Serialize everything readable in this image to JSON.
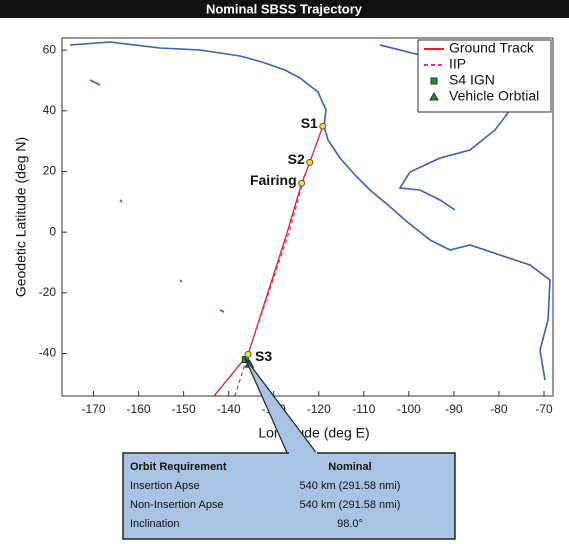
{
  "chart_data": {
    "type": "line",
    "title": "Nominal SBSS Trajectory",
    "xlabel": "Longitude (deg E)",
    "ylabel": "Geodetic Latitude (deg N)",
    "xlim": [
      -177,
      -68
    ],
    "ylim": [
      -54,
      64
    ],
    "xticks": [
      -170,
      -160,
      -150,
      -140,
      -130,
      -120,
      -110,
      -100,
      -90,
      -80,
      -70
    ],
    "yticks": [
      -40,
      -20,
      0,
      20,
      40,
      60
    ],
    "legend": "upper right",
    "series": [
      {
        "name": "Ground Track",
        "color": "#d9262b",
        "style": "solid",
        "x": [
          -119.1,
          -122.0,
          -123.8,
          -127.0,
          -135.7,
          -143.2
        ],
        "y": [
          34.9,
          23.0,
          16.1,
          0,
          -40.3,
          -53.9
        ]
      },
      {
        "name": "IIP",
        "color": "#d23a8a",
        "style": "dashed",
        "x": [
          -119.1,
          -122.0,
          -123.6,
          -126.6,
          -135.7,
          -138.6
        ],
        "y": [
          34.9,
          23.0,
          16.1,
          0,
          -40.3,
          -53.9
        ]
      },
      {
        "name": "S4 IGN",
        "color": "#2e8b3a",
        "style": "square",
        "x": [
          -136.3
        ],
        "y": [
          -42.0
        ]
      },
      {
        "name": "Vehicle Orbtial",
        "color": "#2e8b3a",
        "style": "triangle",
        "x": [
          -135.4
        ],
        "y": [
          -43.5
        ]
      }
    ],
    "annotations": [
      {
        "text": "S1",
        "x": -119.1,
        "y": 34.9
      },
      {
        "text": "S2",
        "x": -122.0,
        "y": 23.0
      },
      {
        "text": "Fairing",
        "x": -123.8,
        "y": 16.1
      },
      {
        "text": "S3",
        "x": -135.7,
        "y": -40.3
      }
    ]
  },
  "table": {
    "headers": [
      "Orbit Requirement",
      "Nominal"
    ],
    "rows": [
      [
        "Insertion Apse",
        "540 km (291.58 nmi)"
      ],
      [
        "Non-Insertion Apse",
        "540 km (291.58 nmi)"
      ],
      [
        "Inclination",
        "98.0°"
      ]
    ]
  }
}
